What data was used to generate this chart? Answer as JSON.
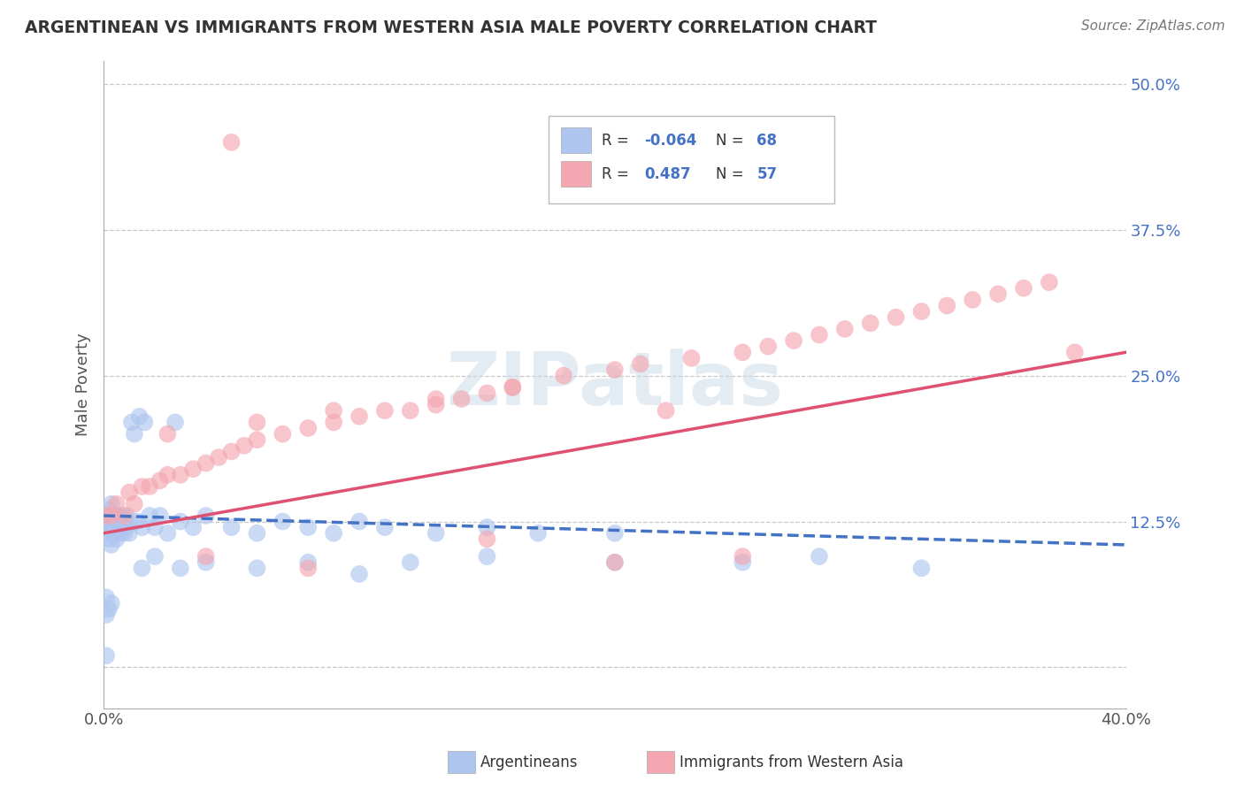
{
  "title": "ARGENTINEAN VS IMMIGRANTS FROM WESTERN ASIA MALE POVERTY CORRELATION CHART",
  "source": "Source: ZipAtlas.com",
  "ylabel": "Male Poverty",
  "xlim": [
    0.0,
    0.4
  ],
  "ylim": [
    -0.035,
    0.52
  ],
  "yticks": [
    0.0,
    0.125,
    0.25,
    0.375,
    0.5
  ],
  "xticks": [
    0.0,
    0.1,
    0.2,
    0.3,
    0.4
  ],
  "color_arg": "#aec6ef",
  "color_wasia": "#f4a7b0",
  "line_color_arg": "#4472C4",
  "line_color_wasia": "#e05070",
  "background_color": "#ffffff",
  "grid_color": "#c8c8c8",
  "arg_x": [
    0.001,
    0.001,
    0.001,
    0.002,
    0.002,
    0.002,
    0.003,
    0.003,
    0.003,
    0.004,
    0.004,
    0.004,
    0.005,
    0.005,
    0.005,
    0.006,
    0.006,
    0.007,
    0.007,
    0.008,
    0.008,
    0.009,
    0.009,
    0.01,
    0.01,
    0.011,
    0.012,
    0.013,
    0.014,
    0.015,
    0.016,
    0.018,
    0.02,
    0.022,
    0.025,
    0.028,
    0.03,
    0.035,
    0.04,
    0.05,
    0.06,
    0.07,
    0.08,
    0.09,
    0.1,
    0.11,
    0.13,
    0.15,
    0.17,
    0.2,
    0.06,
    0.08,
    0.1,
    0.12,
    0.15,
    0.03,
    0.04,
    0.02,
    0.015,
    0.2,
    0.001,
    0.002,
    0.003,
    0.001,
    0.25,
    0.28,
    0.32,
    0.001
  ],
  "arg_y": [
    0.13,
    0.12,
    0.115,
    0.125,
    0.11,
    0.135,
    0.14,
    0.115,
    0.105,
    0.13,
    0.12,
    0.115,
    0.125,
    0.13,
    0.11,
    0.12,
    0.115,
    0.13,
    0.12,
    0.115,
    0.125,
    0.12,
    0.13,
    0.115,
    0.125,
    0.21,
    0.2,
    0.125,
    0.215,
    0.12,
    0.21,
    0.13,
    0.12,
    0.13,
    0.115,
    0.21,
    0.125,
    0.12,
    0.13,
    0.12,
    0.115,
    0.125,
    0.12,
    0.115,
    0.125,
    0.12,
    0.115,
    0.12,
    0.115,
    0.115,
    0.085,
    0.09,
    0.08,
    0.09,
    0.095,
    0.085,
    0.09,
    0.095,
    0.085,
    0.09,
    0.045,
    0.05,
    0.055,
    0.01,
    0.09,
    0.095,
    0.085,
    0.06
  ],
  "wasia_x": [
    0.001,
    0.003,
    0.005,
    0.008,
    0.01,
    0.012,
    0.015,
    0.018,
    0.022,
    0.025,
    0.03,
    0.035,
    0.04,
    0.045,
    0.05,
    0.055,
    0.06,
    0.07,
    0.08,
    0.09,
    0.1,
    0.11,
    0.12,
    0.13,
    0.14,
    0.15,
    0.16,
    0.18,
    0.2,
    0.21,
    0.22,
    0.23,
    0.25,
    0.26,
    0.27,
    0.28,
    0.29,
    0.3,
    0.31,
    0.32,
    0.33,
    0.34,
    0.35,
    0.36,
    0.37,
    0.025,
    0.06,
    0.09,
    0.13,
    0.16,
    0.04,
    0.08,
    0.2,
    0.25,
    0.15,
    0.05,
    0.38
  ],
  "wasia_y": [
    0.13,
    0.13,
    0.14,
    0.13,
    0.15,
    0.14,
    0.155,
    0.155,
    0.16,
    0.165,
    0.165,
    0.17,
    0.175,
    0.18,
    0.185,
    0.19,
    0.195,
    0.2,
    0.205,
    0.21,
    0.215,
    0.22,
    0.22,
    0.225,
    0.23,
    0.235,
    0.24,
    0.25,
    0.255,
    0.26,
    0.22,
    0.265,
    0.27,
    0.275,
    0.28,
    0.285,
    0.29,
    0.295,
    0.3,
    0.305,
    0.31,
    0.315,
    0.32,
    0.325,
    0.33,
    0.2,
    0.21,
    0.22,
    0.23,
    0.24,
    0.095,
    0.085,
    0.09,
    0.095,
    0.11,
    0.45,
    0.27
  ],
  "arg_line_x": [
    0.0,
    0.4
  ],
  "arg_line_y": [
    0.13,
    0.105
  ],
  "wasia_line_x": [
    0.0,
    0.4
  ],
  "wasia_line_y": [
    0.115,
    0.27
  ]
}
